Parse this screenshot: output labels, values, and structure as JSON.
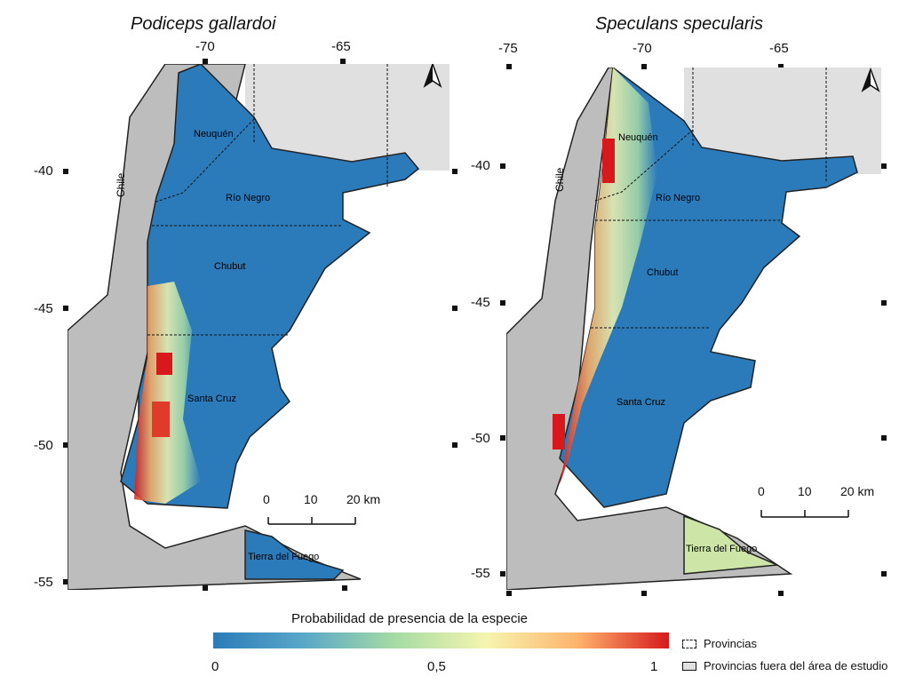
{
  "maps": [
    {
      "title": "Podiceps gallardoi",
      "top_ticks": [
        "-70",
        "-65"
      ],
      "left_ticks": [
        "-40",
        "-45",
        "-50",
        "-55"
      ],
      "provinces": [
        "Neuquén",
        "Río Negro",
        "Chubut",
        "Santa Cruz",
        "Tierra del Fuego"
      ],
      "country": "Chile",
      "scalebar": [
        "0",
        "10",
        "20 km"
      ]
    },
    {
      "title": "Speculans specularis",
      "top_ticks": [
        "-75",
        "-70",
        "-65"
      ],
      "left_ticks": [
        "-40",
        "-45",
        "-50",
        "-55"
      ],
      "provinces": [
        "Neuquén",
        "Río Negro",
        "Chubut",
        "Santa Cruz",
        "Tierra del Fuego"
      ],
      "country": "Chile",
      "scalebar": [
        "0",
        "10",
        "20 km"
      ]
    }
  ],
  "legend": {
    "title": "Probabilidad de presencia de la especie",
    "min_label": "0",
    "mid_label": "0,5",
    "max_label": "1",
    "colors": [
      "#2b7bba",
      "#5aa8c9",
      "#a6dba4",
      "#f6f5b0",
      "#fdb36c",
      "#d7191c"
    ],
    "keys": [
      "Provincias",
      "Provincias fuera del área de estudio"
    ]
  },
  "icons": [
    "north-arrow-icon",
    "north-arrow-icon"
  ]
}
